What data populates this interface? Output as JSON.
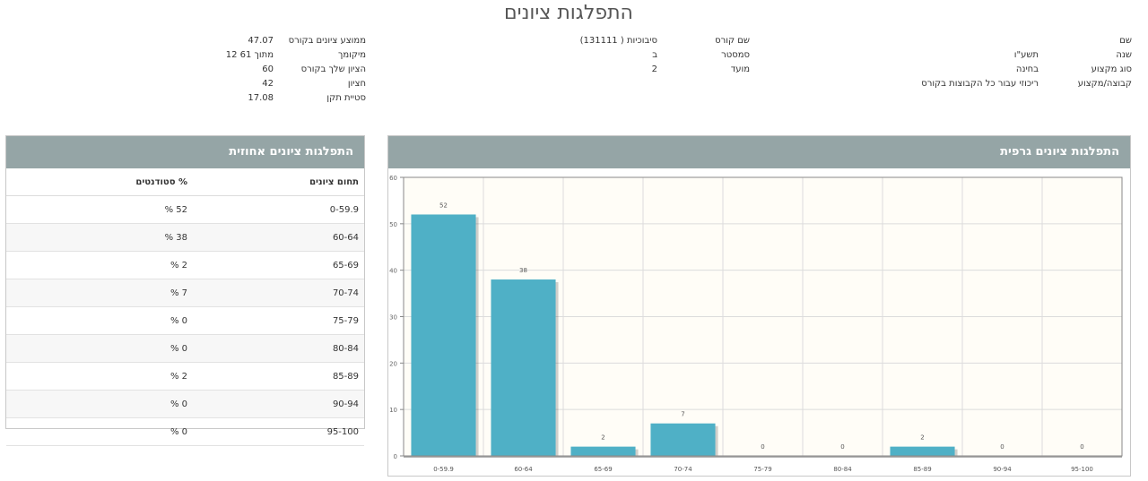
{
  "page": {
    "title": "התפלגות ציונים"
  },
  "info": {
    "col_right": {
      "labels": [
        "שם",
        "שנה",
        "סוג מקצוע",
        "קבוצה/מקצוע"
      ],
      "values": [
        "",
        "תשע\"ו",
        "בחינה",
        "ריכוזי עבור כל הקבוצות בקורס"
      ]
    },
    "col_mid": {
      "labels": [
        "שם קורס",
        "סמסטר",
        "מועד"
      ],
      "values": [
        "סיבוכיות ( 131111)",
        "ב",
        "2"
      ]
    },
    "col_left": {
      "labels": [
        "ממוצע ציונים בקורס",
        "מיקומך",
        "הציון שלך בקורס",
        "חציון",
        "סטיית תקן"
      ],
      "values": [
        "47.07",
        "12 מתוך 61",
        "60",
        "42",
        "17.08"
      ]
    }
  },
  "percent_panel": {
    "title": "התפלגות ציונים אחוזית",
    "col_range": "תחום ציונים",
    "col_percent": "% סטודנטים",
    "rows": [
      {
        "range": "0-59.9",
        "percent": "52 %"
      },
      {
        "range": "60-64",
        "percent": "38 %"
      },
      {
        "range": "65-69",
        "percent": "2 %"
      },
      {
        "range": "70-74",
        "percent": "7 %"
      },
      {
        "range": "75-79",
        "percent": "0 %"
      },
      {
        "range": "80-84",
        "percent": "0 %"
      },
      {
        "range": "85-89",
        "percent": "2 %"
      },
      {
        "range": "90-94",
        "percent": "0 %"
      },
      {
        "range": "95-100",
        "percent": "0 %"
      }
    ]
  },
  "chart_panel": {
    "title": "התפלגות ציונים גרפית"
  },
  "colors": {
    "header": "#95a5a6",
    "bar": "#4fb0c6",
    "plot_bg": "#fffdf7"
  },
  "chart_data": {
    "type": "bar",
    "categories": [
      "0-59.9",
      "60-64",
      "65-69",
      "70-74",
      "75-79",
      "80-84",
      "85-89",
      "90-94",
      "95-100"
    ],
    "values": [
      52,
      38,
      2,
      7,
      0,
      0,
      2,
      0,
      0
    ],
    "yticks": [
      0,
      10,
      20,
      30,
      40,
      50,
      60
    ],
    "ylim": [
      0,
      60
    ],
    "title": "",
    "xlabel": "",
    "ylabel": "",
    "grid": true,
    "data_labels": true
  }
}
